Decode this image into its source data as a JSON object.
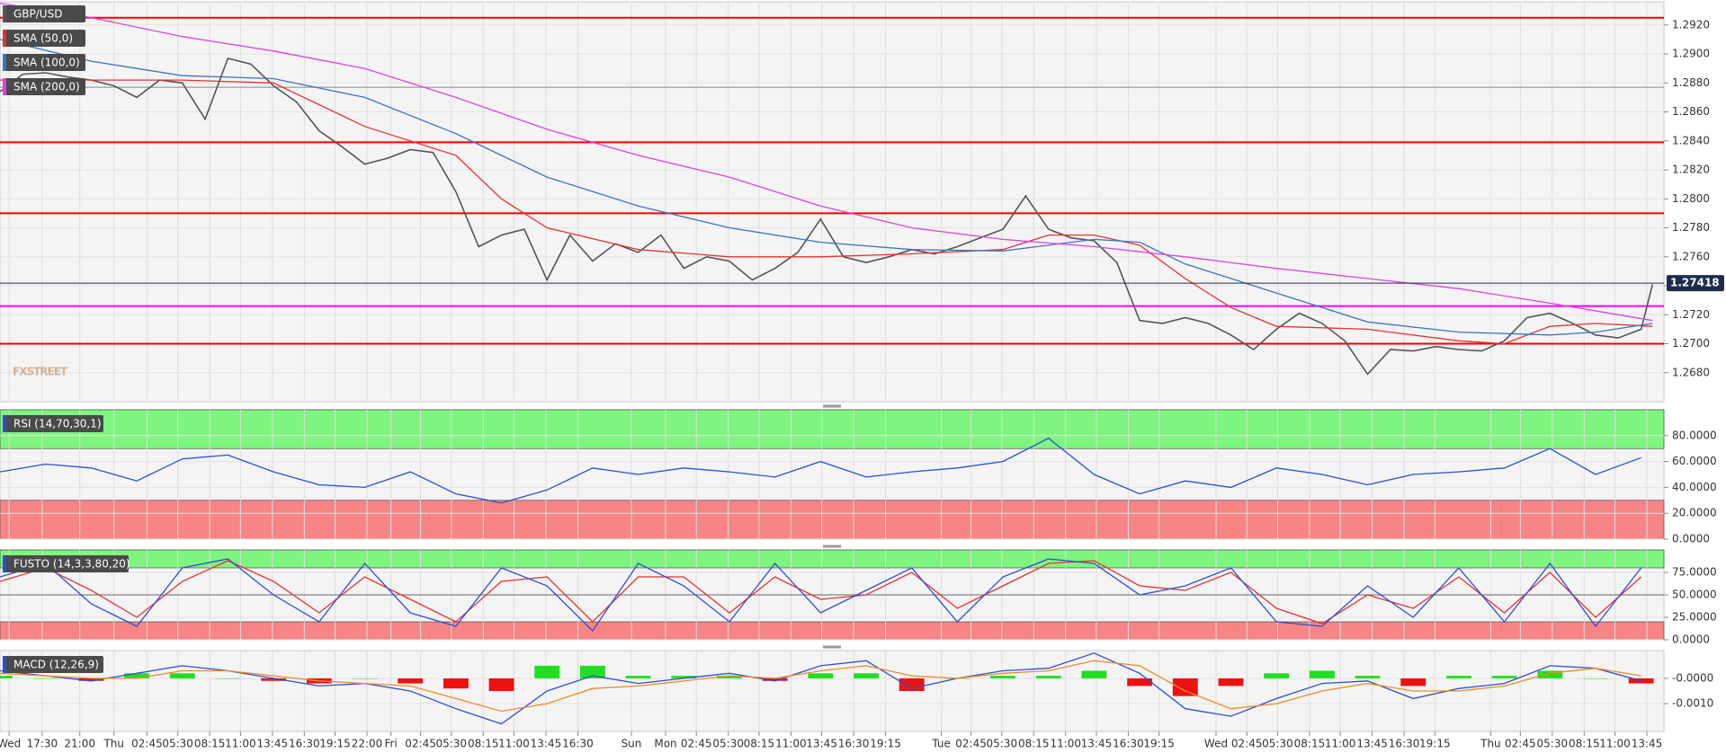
{
  "chart_data": [
    {
      "type": "line",
      "watermark": "FXSTREET",
      "ylim": [
        1.266,
        1.2936
      ],
      "yticks": [
        {
          "value": 1.268,
          "label": "1.2680"
        },
        {
          "value": 1.27,
          "label": "1.2700"
        },
        {
          "value": 1.272,
          "label": "1.2720"
        },
        {
          "value": 1.274,
          "label": "1.2740"
        },
        {
          "value": 1.276,
          "label": "1.2760"
        },
        {
          "value": 1.278,
          "label": "1.2780"
        },
        {
          "value": 1.28,
          "label": "1.2800"
        },
        {
          "value": 1.282,
          "label": "1.2820"
        },
        {
          "value": 1.284,
          "label": "1.2840"
        },
        {
          "value": 1.286,
          "label": "1.2860"
        },
        {
          "value": 1.288,
          "label": "1.2880"
        },
        {
          "value": 1.29,
          "label": "1.2900"
        },
        {
          "value": 1.292,
          "label": "1.2920"
        }
      ],
      "hlines": [
        {
          "value": 1.2925,
          "color": "#ff0000"
        },
        {
          "value": 1.2877,
          "color": "#888888"
        },
        {
          "value": 1.2839,
          "color": "#ff0000"
        },
        {
          "value": 1.279,
          "color": "#ff0000"
        },
        {
          "value": 1.2726,
          "color": "#ff00ff"
        },
        {
          "value": 1.27,
          "color": "#ff0000"
        }
      ],
      "last_price": 1.27418,
      "last_color": "#1f2d4d",
      "series": [
        {
          "name": "GBP/USD",
          "color": "#555555",
          "x": [
            0,
            2,
            4,
            6,
            8,
            10,
            12,
            14,
            16,
            18,
            20,
            22,
            24,
            26,
            28,
            30,
            32,
            34,
            36,
            38,
            40,
            42,
            44,
            46,
            48,
            50,
            52,
            54,
            56,
            58,
            60,
            62,
            64,
            66,
            68,
            70,
            72,
            74,
            76,
            78,
            80,
            82,
            84,
            86,
            88,
            90,
            92,
            94,
            96,
            98,
            100,
            102,
            104,
            106,
            108,
            110,
            112,
            114,
            116,
            118,
            120,
            122,
            124,
            126,
            128,
            130,
            132,
            134,
            136,
            138,
            140,
            142,
            144,
            145
          ],
          "values": [
            1.2874,
            1.2886,
            1.2887,
            1.2884,
            1.2882,
            1.2878,
            1.287,
            1.2882,
            1.288,
            1.2855,
            1.2897,
            1.2893,
            1.2878,
            1.2867,
            1.2847,
            1.2836,
            1.2824,
            1.2828,
            1.2834,
            1.2832,
            1.2805,
            1.2767,
            1.2775,
            1.2779,
            1.2744,
            1.2775,
            1.2757,
            1.2769,
            1.2763,
            1.2775,
            1.2752,
            1.276,
            1.2757,
            1.2744,
            1.2752,
            1.2763,
            1.2786,
            1.276,
            1.2756,
            1.276,
            1.2765,
            1.2762,
            1.2767,
            1.2773,
            1.2779,
            1.2802,
            1.2779,
            1.2773,
            1.2771,
            1.2756,
            1.2716,
            1.2714,
            1.2718,
            1.2714,
            1.2706,
            1.2696,
            1.271,
            1.2721,
            1.2714,
            1.2702,
            1.2679,
            1.2696,
            1.2695,
            1.2698,
            1.2696,
            1.2695,
            1.2702,
            1.2718,
            1.2721,
            1.2714,
            1.2706,
            1.2704,
            1.271,
            1.2741
          ]
        },
        {
          "name": "SMA (50,0)",
          "color": "#e8312f",
          "x": [
            0,
            8,
            16,
            24,
            32,
            40,
            44,
            48,
            56,
            64,
            72,
            80,
            88,
            92,
            96,
            100,
            104,
            108,
            112,
            120,
            128,
            132,
            136,
            140,
            145
          ],
          "values": [
            1.2882,
            1.2882,
            1.2882,
            1.288,
            1.285,
            1.283,
            1.28,
            1.278,
            1.2765,
            1.276,
            1.276,
            1.2762,
            1.2765,
            1.2775,
            1.2775,
            1.2768,
            1.2745,
            1.2725,
            1.2712,
            1.271,
            1.2702,
            1.27,
            1.2712,
            1.2714,
            1.2712
          ]
        },
        {
          "name": "SMA (100,0)",
          "color": "#3a75c4",
          "x": [
            0,
            8,
            16,
            24,
            32,
            40,
            48,
            56,
            64,
            72,
            80,
            88,
            96,
            100,
            104,
            112,
            120,
            128,
            136,
            140,
            145
          ],
          "values": [
            1.291,
            1.2895,
            1.2885,
            1.2883,
            1.287,
            1.2845,
            1.2815,
            1.2795,
            1.278,
            1.277,
            1.2765,
            1.2764,
            1.2772,
            1.277,
            1.2755,
            1.2735,
            1.2715,
            1.2708,
            1.2706,
            1.2708,
            1.2714
          ]
        },
        {
          "name": "SMA (200,0)",
          "color": "#e040e0",
          "x": [
            0,
            8,
            16,
            24,
            32,
            40,
            48,
            56,
            64,
            72,
            80,
            88,
            96,
            104,
            112,
            120,
            128,
            136,
            145
          ],
          "values": [
            1.2935,
            1.2925,
            1.2912,
            1.2902,
            1.289,
            1.287,
            1.2848,
            1.283,
            1.2815,
            1.2795,
            1.278,
            1.2772,
            1.2767,
            1.276,
            1.2752,
            1.2745,
            1.2738,
            1.2728,
            1.2716
          ]
        }
      ]
    },
    {
      "type": "line",
      "title": "RSI (14,70,30,1)",
      "ylim": [
        0,
        100
      ],
      "yticks": [
        {
          "value": 0,
          "label": "0.0000"
        },
        {
          "value": 20,
          "label": "20.0000"
        },
        {
          "value": 40,
          "label": "40.0000"
        },
        {
          "value": 60,
          "label": "60.0000"
        },
        {
          "value": 80,
          "label": "80.0000"
        }
      ],
      "zones": [
        {
          "from": 70,
          "to": 100,
          "color": "#7ef57e"
        },
        {
          "from": 0,
          "to": 30,
          "color": "#f78585"
        }
      ],
      "x": [
        0,
        4,
        8,
        12,
        16,
        20,
        24,
        28,
        32,
        36,
        40,
        44,
        48,
        52,
        56,
        60,
        64,
        68,
        72,
        76,
        80,
        84,
        88,
        92,
        96,
        100,
        104,
        108,
        112,
        116,
        120,
        124,
        128,
        132,
        136,
        140,
        144
      ],
      "series": [
        {
          "color": "#2b4fd6",
          "values": [
            52,
            58,
            55,
            45,
            62,
            65,
            52,
            42,
            40,
            52,
            35,
            28,
            38,
            55,
            50,
            55,
            52,
            48,
            60,
            48,
            52,
            55,
            60,
            78,
            50,
            35,
            45,
            40,
            55,
            50,
            42,
            50,
            52,
            55,
            70,
            50,
            63
          ]
        }
      ]
    },
    {
      "type": "line",
      "title": "FUSTO (14,3,3,80,20)",
      "ylim": [
        0,
        100
      ],
      "yticks": [
        {
          "value": 0,
          "label": "0.0000"
        },
        {
          "value": 25,
          "label": "25.0000"
        },
        {
          "value": 50,
          "label": "50.0000"
        },
        {
          "value": 75,
          "label": "75.0000"
        }
      ],
      "zones": [
        {
          "from": 80,
          "to": 100,
          "color": "#7ef57e"
        },
        {
          "from": 0,
          "to": 20,
          "color": "#f78585"
        }
      ],
      "x": [
        0,
        4,
        8,
        12,
        16,
        20,
        24,
        28,
        32,
        36,
        40,
        44,
        48,
        52,
        56,
        60,
        64,
        68,
        72,
        76,
        80,
        84,
        88,
        92,
        96,
        100,
        104,
        108,
        112,
        116,
        120,
        124,
        128,
        132,
        136,
        140,
        144
      ],
      "series": [
        {
          "color": "#e8312f",
          "values": [
            65,
            80,
            55,
            25,
            65,
            88,
            65,
            30,
            70,
            45,
            20,
            65,
            70,
            20,
            70,
            70,
            30,
            70,
            45,
            50,
            75,
            35,
            60,
            85,
            88,
            60,
            55,
            75,
            35,
            18,
            50,
            35,
            70,
            30,
            75,
            25,
            70
          ]
        },
        {
          "color": "#2b4fd6",
          "values": [
            70,
            85,
            40,
            15,
            80,
            90,
            50,
            20,
            85,
            30,
            15,
            80,
            60,
            10,
            85,
            60,
            20,
            85,
            30,
            55,
            80,
            20,
            70,
            90,
            85,
            50,
            60,
            80,
            20,
            15,
            60,
            25,
            80,
            20,
            85,
            15,
            80
          ]
        }
      ]
    },
    {
      "type": "line",
      "title": "MACD (12,26,9)",
      "ylim": [
        -0.0021,
        0.0011
      ],
      "yticks": [
        {
          "value": -0.001,
          "label": "-0.0010"
        },
        {
          "value": 0,
          "label": "-0.0000"
        }
      ],
      "xlim": [
        0,
        146
      ],
      "xticks": [
        {
          "value": 0.8,
          "label": "Wed"
        },
        {
          "value": 3.7,
          "label": "17:30"
        },
        {
          "value": 7.0,
          "label": "21:00"
        },
        {
          "value": 10.0,
          "label": "Thu"
        },
        {
          "value": 12.9,
          "label": "02:45"
        },
        {
          "value": 15.6,
          "label": "05:30"
        },
        {
          "value": 18.4,
          "label": "08:15"
        },
        {
          "value": 21.1,
          "label": "11:00"
        },
        {
          "value": 23.9,
          "label": "13:45"
        },
        {
          "value": 26.7,
          "label": "16:30"
        },
        {
          "value": 29.4,
          "label": "19:15"
        },
        {
          "value": 32.2,
          "label": "22:00"
        },
        {
          "value": 34.3,
          "label": "Fri"
        },
        {
          "value": 36.9,
          "label": "02:45"
        },
        {
          "value": 39.6,
          "label": "05:30"
        },
        {
          "value": 42.4,
          "label": "08:15"
        },
        {
          "value": 45.1,
          "label": "11:00"
        },
        {
          "value": 47.9,
          "label": "13:45"
        },
        {
          "value": 50.7,
          "label": "16:30"
        },
        {
          "value": 55.4,
          "label": "Sun"
        },
        {
          "value": 58.4,
          "label": "Mon"
        },
        {
          "value": 61.1,
          "label": "02:45"
        },
        {
          "value": 63.9,
          "label": "05:30"
        },
        {
          "value": 66.6,
          "label": "08:15"
        },
        {
          "value": 69.4,
          "label": "11:00"
        },
        {
          "value": 72.1,
          "label": "13:45"
        },
        {
          "value": 74.9,
          "label": "16:30"
        },
        {
          "value": 77.7,
          "label": "19:15"
        },
        {
          "value": 82.6,
          "label": "Tue"
        },
        {
          "value": 85.2,
          "label": "02:45"
        },
        {
          "value": 87.9,
          "label": "05:30"
        },
        {
          "value": 90.7,
          "label": "08:15"
        },
        {
          "value": 93.5,
          "label": "11:00"
        },
        {
          "value": 96.2,
          "label": "13:45"
        },
        {
          "value": 99.0,
          "label": "16:30"
        },
        {
          "value": 101.7,
          "label": "19:15"
        },
        {
          "value": 106.7,
          "label": "Wed"
        },
        {
          "value": 109.4,
          "label": "02:45"
        },
        {
          "value": 112.1,
          "label": "05:30"
        },
        {
          "value": 114.9,
          "label": "08:15"
        },
        {
          "value": 117.6,
          "label": "11:00"
        },
        {
          "value": 120.4,
          "label": "13:45"
        },
        {
          "value": 123.2,
          "label": "16:30"
        },
        {
          "value": 125.9,
          "label": "19:15"
        },
        {
          "value": 130.8,
          "label": "Thu"
        },
        {
          "value": 133.4,
          "label": "02:45"
        },
        {
          "value": 136.2,
          "label": "05:30"
        },
        {
          "value": 139.0,
          "label": "08:15"
        },
        {
          "value": 141.7,
          "label": "11:00"
        },
        {
          "value": 144.5,
          "label": "13:45"
        }
      ],
      "x": [
        0,
        4,
        8,
        12,
        16,
        20,
        24,
        28,
        32,
        36,
        40,
        44,
        48,
        52,
        56,
        60,
        64,
        68,
        72,
        76,
        80,
        84,
        88,
        92,
        96,
        100,
        104,
        108,
        112,
        116,
        120,
        124,
        128,
        132,
        136,
        140,
        144
      ],
      "histogram": {
        "positive_color": "#22dd22",
        "negative_color": "#ee1111",
        "values": [
          0.0001,
          0,
          -0.0001,
          0.0002,
          0.0002,
          0,
          -0.0001,
          -0.0002,
          0,
          -0.0002,
          -0.0004,
          -0.0005,
          0.0005,
          0.0005,
          0.0001,
          0.0001,
          0.0001,
          -0.0001,
          0.0002,
          0.0002,
          -0.0005,
          0,
          0.0001,
          0.0001,
          0.0003,
          -0.0003,
          -0.0007,
          -0.0003,
          0.0002,
          0.0003,
          0.0001,
          -0.0003,
          0.0001,
          0.0001,
          0.0003,
          0,
          -0.0002
        ]
      },
      "series": [
        {
          "color": "#2b4fd6",
          "values": [
            0.0003,
            0.0001,
            -0.0001,
            0.0002,
            0.0005,
            0.0003,
            0,
            -0.0003,
            -0.0002,
            -0.0005,
            -0.0012,
            -0.0018,
            -0.0005,
            0.0001,
            -0.0002,
            0,
            0.0002,
            -0.0001,
            0.0005,
            0.0007,
            -0.0004,
            0,
            0.0003,
            0.0004,
            0.001,
            0.0002,
            -0.0012,
            -0.0015,
            -0.0008,
            -0.0002,
            -0.0001,
            -0.0008,
            -0.0004,
            -0.0002,
            0.0005,
            0.0004,
            -0.0001
          ]
        },
        {
          "color": "#f08a24",
          "values": [
            0.0002,
            0.0001,
            0,
            0,
            0.0003,
            0.0003,
            0.0001,
            -0.0001,
            -0.0002,
            -0.0003,
            -0.0008,
            -0.0013,
            -0.001,
            -0.0004,
            -0.0003,
            -0.0001,
            0.0001,
            0,
            0.0003,
            0.0005,
            0.0001,
            0,
            0.0002,
            0.0003,
            0.0007,
            0.0005,
            -0.0005,
            -0.0012,
            -0.001,
            -0.0005,
            -0.0002,
            -0.0005,
            -0.0005,
            -0.0003,
            0.0002,
            0.0004,
            0.0001
          ]
        }
      ]
    }
  ]
}
